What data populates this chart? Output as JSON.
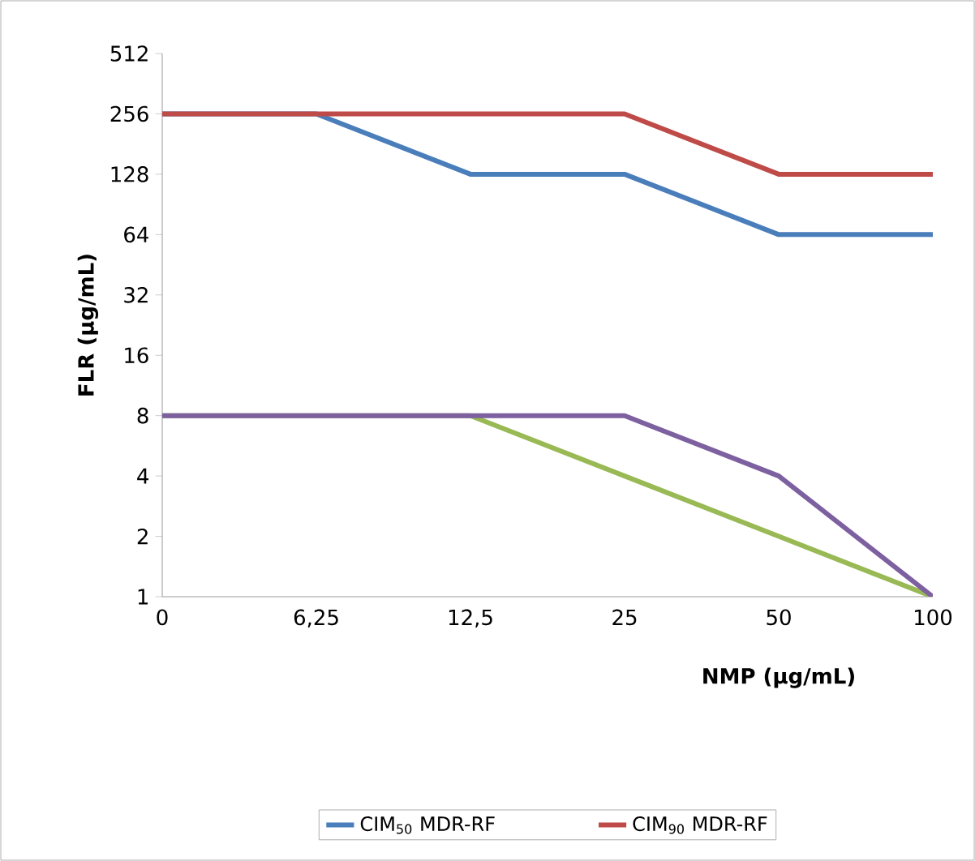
{
  "chart_data": {
    "type": "line",
    "xlabel": "NMP (µg/mL)",
    "ylabel": "FLR  (µg/mL)",
    "categories": [
      "0",
      "6,25",
      "12,5",
      "25",
      "50",
      "100"
    ],
    "series": [
      {
        "name": "CIM$_{50}$ MDR-RF",
        "color": "#4a7ebb",
        "values": [
          256,
          256,
          128,
          128,
          64,
          64
        ]
      },
      {
        "name": "CIM$_{90}$ MDR-RF",
        "color": "#be4b48",
        "values": [
          256,
          256,
          256,
          256,
          128,
          128
        ]
      },
      {
        "color": "#98b954",
        "values": [
          8,
          8,
          8,
          4,
          2,
          1
        ]
      },
      {
        "color": "#7d60a0",
        "values": [
          8,
          8,
          8,
          8,
          4,
          1
        ]
      }
    ],
    "log": "y",
    "ylim": [
      1,
      512
    ],
    "yticks": [
      1,
      2,
      4,
      8,
      16,
      32,
      64,
      128,
      256,
      512
    ],
    "legend": "bottom"
  }
}
